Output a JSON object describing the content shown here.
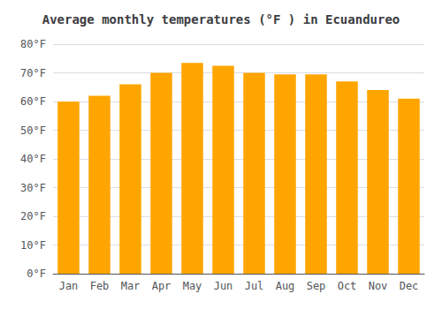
{
  "chart_data": {
    "type": "bar",
    "title": "Average monthly temperatures (°F ) in Ecuandureo",
    "categories": [
      "Jan",
      "Feb",
      "Mar",
      "Apr",
      "May",
      "Jun",
      "Jul",
      "Aug",
      "Sep",
      "Oct",
      "Nov",
      "Dec"
    ],
    "values": [
      60.0,
      62.0,
      66.0,
      70.0,
      73.5,
      72.5,
      70.0,
      69.5,
      69.5,
      67.0,
      64.0,
      61.0
    ],
    "color": "#FFA500",
    "ylim": [
      0,
      80
    ],
    "yticks": [
      {
        "value": 0,
        "label": "0°F"
      },
      {
        "value": 10,
        "label": "10°F"
      },
      {
        "value": 20,
        "label": "20°F"
      },
      {
        "value": 30,
        "label": "30°F"
      },
      {
        "value": 40,
        "label": "40°F"
      },
      {
        "value": 50,
        "label": "50°F"
      },
      {
        "value": 60,
        "label": "60°F"
      },
      {
        "value": 70,
        "label": "70°F"
      },
      {
        "value": 80,
        "label": "80°F"
      }
    ],
    "grid": true
  }
}
